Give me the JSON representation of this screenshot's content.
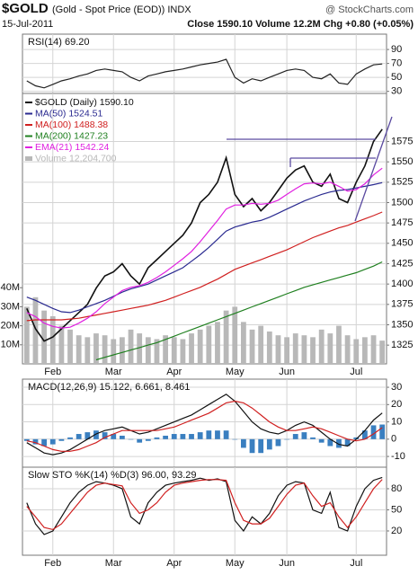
{
  "header": {
    "title": "$GOLD",
    "subtitle": "(Gold - Spot Price (EOD)) INDX",
    "site": "@ StockCharts.com",
    "date": "15-Jul-2011",
    "info": "Close 1590.10  Volume 12.2M  Chg +0.80 (+0.05%)"
  },
  "chart_data": [
    {
      "type": "line",
      "title": "RSI(14) 69.20",
      "ylim": [
        27,
        112
      ],
      "yticks": [
        30,
        50,
        70,
        90
      ],
      "series": [
        {
          "name": "RSI(14)",
          "color": "#222222",
          "values": [
            45,
            38,
            35,
            40,
            45,
            48,
            52,
            55,
            60,
            62,
            60,
            58,
            50,
            45,
            52,
            55,
            58,
            60,
            62,
            65,
            68,
            70,
            72,
            76,
            50,
            42,
            48,
            45,
            50,
            55,
            60,
            62,
            60,
            50,
            48,
            55,
            42,
            40,
            55,
            62,
            68,
            69.2
          ]
        }
      ]
    },
    {
      "type": "line",
      "ylim": [
        1302,
        1634
      ],
      "yticks": [
        1325,
        1350,
        1375,
        1400,
        1425,
        1450,
        1475,
        1500,
        1525,
        1550,
        1575
      ],
      "y2lim": [
        0,
        142
      ],
      "y2ticks": [
        {
          "value": 10,
          "label": "10M"
        },
        {
          "value": 20,
          "label": "20M"
        },
        {
          "value": 30,
          "label": "30M"
        },
        {
          "value": 40,
          "label": "40M"
        }
      ],
      "categories": [
        null,
        null,
        null,
        "Feb",
        null,
        null,
        null,
        null,
        null,
        null,
        "Mar",
        null,
        null,
        null,
        null,
        null,
        null,
        "Apr",
        null,
        null,
        null,
        null,
        null,
        null,
        "May",
        null,
        null,
        null,
        null,
        null,
        "Jun",
        null,
        null,
        null,
        null,
        null,
        null,
        null,
        "Jul",
        null,
        null,
        null
      ],
      "series": [
        {
          "name": "$GOLD (Daily) 1590.10",
          "color": "#111111",
          "values": [
            1370,
            1345,
            1330,
            1335,
            1345,
            1355,
            1365,
            1375,
            1395,
            1410,
            1415,
            1425,
            1410,
            1400,
            1420,
            1430,
            1440,
            1450,
            1460,
            1475,
            1500,
            1510,
            1525,
            1555,
            1510,
            1495,
            1505,
            1490,
            1500,
            1515,
            1530,
            1540,
            1545,
            1525,
            1520,
            1535,
            1505,
            1500,
            1525,
            1545,
            1575,
            1590.1
          ]
        },
        {
          "name": "MA(50) 1524.51",
          "color": "#2a2a90",
          "values": [
            1384,
            1380,
            1375,
            1370,
            1366,
            1365,
            1368,
            1372,
            1376,
            1380,
            1385,
            1390,
            1394,
            1397,
            1400,
            1405,
            1410,
            1415,
            1420,
            1428,
            1436,
            1445,
            1455,
            1465,
            1470,
            1473,
            1476,
            1478,
            1482,
            1487,
            1492,
            1497,
            1502,
            1506,
            1510,
            1513,
            1515,
            1516,
            1518,
            1520,
            1522,
            1524.51
          ]
        },
        {
          "name": "MA(100) 1488.38",
          "color": "#d02020",
          "values": [
            1355,
            1356,
            1356,
            1356,
            1356,
            1357,
            1358,
            1360,
            1362,
            1364,
            1366,
            1368,
            1370,
            1372,
            1374,
            1377,
            1380,
            1384,
            1388,
            1392,
            1396,
            1401,
            1406,
            1412,
            1418,
            1422,
            1426,
            1430,
            1434,
            1438,
            1442,
            1447,
            1452,
            1457,
            1461,
            1465,
            1469,
            1472,
            1476,
            1480,
            1484,
            1488.38
          ]
        },
        {
          "name": "MA(200) 1427.23",
          "color": "#208020",
          "values": [
            null,
            null,
            null,
            null,
            null,
            null,
            null,
            null,
            1307,
            1310,
            1313,
            1316,
            1319,
            1322,
            1325,
            1328,
            1332,
            1336,
            1340,
            1344,
            1348,
            1352,
            1356,
            1360,
            1364,
            1368,
            1372,
            1376,
            1380,
            1384,
            1388,
            1392,
            1396,
            1399,
            1402,
            1405,
            1408,
            1411,
            1414,
            1418,
            1422,
            1427.23
          ]
        },
        {
          "name": "EMA(21) 1542.24",
          "color": "#e020e0",
          "values": [
            1365,
            1360,
            1352,
            1348,
            1346,
            1347,
            1352,
            1358,
            1366,
            1376,
            1384,
            1392,
            1396,
            1398,
            1402,
            1408,
            1415,
            1423,
            1431,
            1440,
            1452,
            1465,
            1478,
            1492,
            1497,
            1497,
            1499,
            1498,
            1499,
            1503,
            1510,
            1517,
            1523,
            1524,
            1523,
            1525,
            1520,
            1514,
            1516,
            1523,
            1534,
            1542.24
          ]
        },
        {
          "name": "Volume 12,204,700",
          "color": "#b8b8b8",
          "style": "bar",
          "axis": "y2",
          "values": [
            30,
            35,
            28,
            25,
            20,
            18,
            15,
            14,
            16,
            15,
            13,
            14,
            18,
            16,
            14,
            13,
            15,
            14,
            13,
            16,
            18,
            20,
            22,
            28,
            30,
            22,
            18,
            20,
            17,
            15,
            14,
            16,
            15,
            14,
            18,
            16,
            20,
            15,
            13,
            14,
            15,
            12.2047
          ]
        }
      ]
    },
    {
      "type": "line",
      "title": "MACD(12,26,9) 15.122, 6.661, 8.461",
      "ylim": [
        -16.2,
        34.7
      ],
      "yticks": [
        -10,
        0,
        10,
        20,
        30
      ],
      "series": [
        {
          "name": "MACD",
          "color": "#111111",
          "values": [
            -2,
            -5,
            -8,
            -9,
            -8,
            -6,
            -3,
            0,
            3,
            5,
            6,
            7,
            5,
            3,
            4,
            6,
            8,
            10,
            12,
            14,
            17,
            20,
            23,
            26,
            22,
            16,
            10,
            6,
            4,
            3,
            5,
            8,
            10,
            8,
            4,
            0,
            -3,
            -4,
            0,
            5,
            11,
            15.122
          ]
        },
        {
          "name": "Signal",
          "color": "#d02020",
          "values": [
            -1,
            -2,
            -4,
            -6,
            -7,
            -7,
            -6,
            -4,
            -2,
            1,
            3,
            5,
            5,
            5,
            5,
            5,
            6,
            7,
            9,
            11,
            13,
            15,
            18,
            21,
            22,
            21,
            18,
            14,
            10,
            7,
            5,
            5,
            6,
            7,
            6,
            4,
            2,
            0,
            -1,
            0,
            3,
            6.661
          ]
        },
        {
          "name": "Histogram",
          "color": "#3a7fc0",
          "style": "bar",
          "values": [
            -1,
            -3,
            -4,
            -3,
            -1,
            1,
            3,
            4,
            5,
            4,
            3,
            2,
            0,
            -2,
            -1,
            1,
            2,
            3,
            3,
            3,
            4,
            5,
            5,
            5,
            0,
            -5,
            -8,
            -8,
            -6,
            -4,
            0,
            3,
            4,
            1,
            -2,
            -4,
            -5,
            -4,
            1,
            5,
            8,
            8.461
          ]
        }
      ]
    },
    {
      "type": "line",
      "title": "Slow STO %K(14) %D(3) 96.00, 93.29",
      "ylim": [
        -14.5,
        110.6
      ],
      "yticks": [
        20,
        50,
        80
      ],
      "categories": [
        null,
        null,
        null,
        "Feb",
        null,
        null,
        null,
        null,
        null,
        null,
        "Mar",
        null,
        null,
        null,
        null,
        null,
        null,
        "Apr",
        null,
        null,
        null,
        null,
        null,
        null,
        "May",
        null,
        null,
        null,
        null,
        null,
        "Jun",
        null,
        null,
        null,
        null,
        null,
        null,
        null,
        "Jul",
        null,
        null,
        null
      ],
      "series": [
        {
          "name": "%K",
          "color": "#111111",
          "values": [
            60,
            30,
            15,
            20,
            40,
            60,
            75,
            85,
            90,
            88,
            85,
            80,
            40,
            30,
            60,
            75,
            85,
            88,
            90,
            92,
            95,
            92,
            94,
            90,
            35,
            20,
            40,
            30,
            45,
            70,
            85,
            90,
            88,
            50,
            45,
            75,
            25,
            20,
            55,
            80,
            92,
            96
          ]
        },
        {
          "name": "%D",
          "color": "#d02020",
          "values": [
            55,
            40,
            25,
            22,
            30,
            45,
            60,
            75,
            85,
            88,
            86,
            84,
            60,
            45,
            50,
            60,
            75,
            85,
            88,
            90,
            92,
            93,
            93,
            92,
            60,
            35,
            30,
            30,
            38,
            55,
            72,
            85,
            88,
            70,
            55,
            60,
            40,
            25,
            40,
            60,
            80,
            93.29
          ]
        }
      ]
    }
  ]
}
